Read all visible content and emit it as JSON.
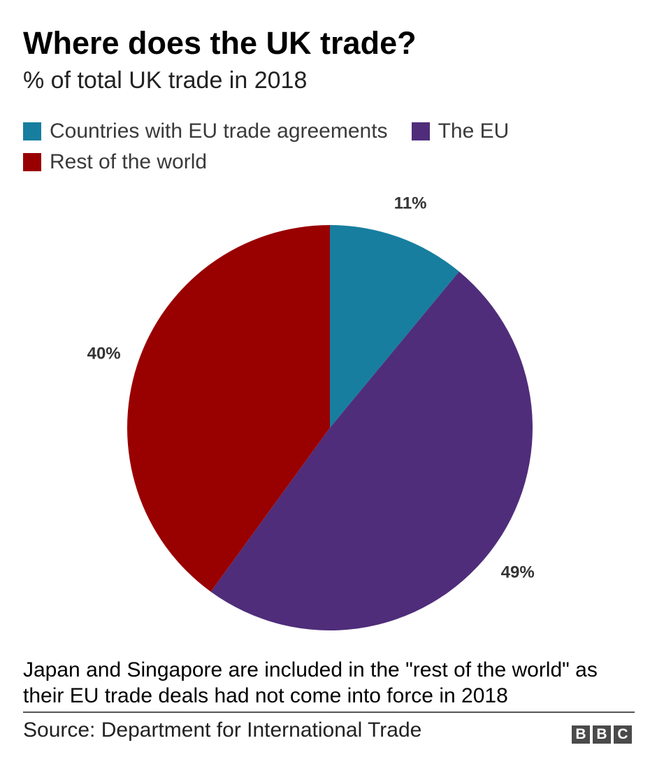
{
  "chart_data": {
    "type": "pie",
    "title": "Where does the UK trade?",
    "subtitle": "% of total UK trade in 2018",
    "legend_placement": "top",
    "slices": [
      {
        "label": "Countries with EU trade agreements",
        "value": 11,
        "display": "11%",
        "color": "#177e9f"
      },
      {
        "label": "The EU",
        "value": 49,
        "display": "49%",
        "color": "#4f2d7a"
      },
      {
        "label": "Rest of the world",
        "value": 40,
        "display": "40%",
        "color": "#990000"
      }
    ]
  },
  "legend": [
    {
      "label": "Countries with EU trade agreements",
      "color": "#177e9f"
    },
    {
      "label": "The EU",
      "color": "#4f2d7a"
    },
    {
      "label": "Rest of the world",
      "color": "#990000"
    }
  ],
  "note": "Japan and Singapore are included in the \"rest of the world\" as their EU trade deals had not come into force in 2018",
  "source": "Source: Department for International Trade",
  "logo": {
    "letters": [
      "B",
      "B",
      "C"
    ]
  }
}
